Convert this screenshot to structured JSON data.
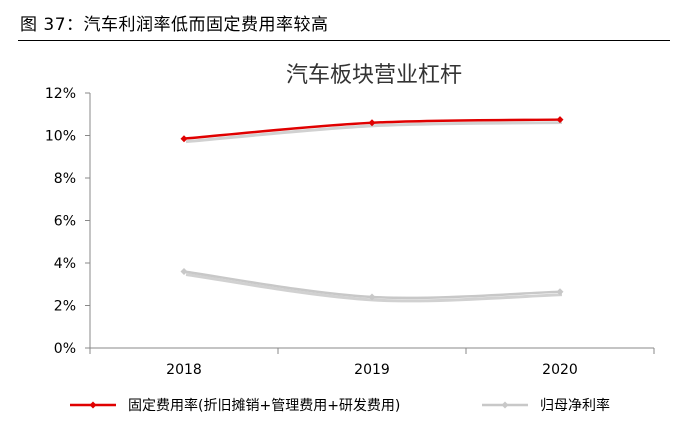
{
  "figure": {
    "caption": "图 37：汽车利润率低而固定费用率较高"
  },
  "colors": {
    "series_red": "#e00000",
    "series_gray": "#c8c8c8",
    "axis": "#888888"
  },
  "chart_data": {
    "type": "line",
    "title": "汽车板块营业杠杆",
    "xlabel": "",
    "ylabel": "",
    "categories": [
      "2018",
      "2019",
      "2020"
    ],
    "ylim": [
      0,
      12
    ],
    "yticks": [
      "0%",
      "2%",
      "4%",
      "6%",
      "8%",
      "10%",
      "12%"
    ],
    "grid": false,
    "legend": "bottom",
    "series": [
      {
        "name": "固定费用率(折旧摊销+管理费用+研发费用)",
        "values": [
          9.85,
          10.6,
          10.75
        ],
        "color": "#e00000"
      },
      {
        "name": "归母净利率",
        "values": [
          3.6,
          2.4,
          2.65
        ],
        "color": "#c8c8c8"
      }
    ]
  }
}
